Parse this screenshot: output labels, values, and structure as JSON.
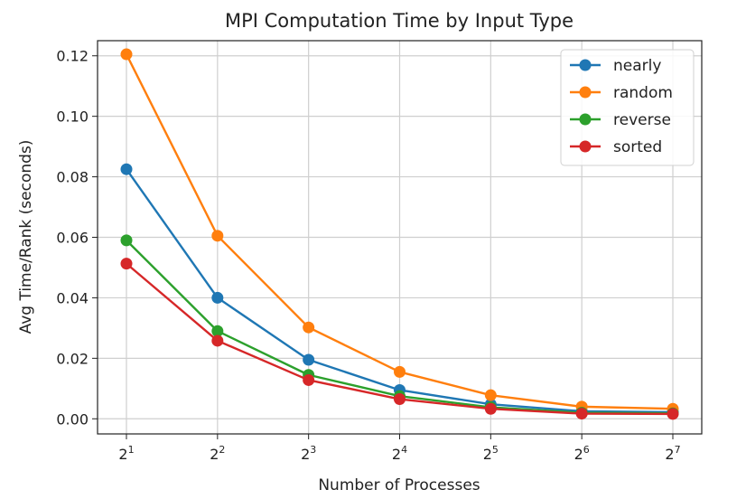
{
  "chart_data": {
    "type": "line",
    "title": "MPI Computation Time by Input Type",
    "xlabel": "Number of Processes",
    "ylabel": "Avg Time/Rank (seconds)",
    "x": [
      2,
      4,
      8,
      16,
      32,
      64,
      128
    ],
    "x_tick_labels": [
      {
        "base": "2",
        "exp": "1"
      },
      {
        "base": "2",
        "exp": "2"
      },
      {
        "base": "2",
        "exp": "3"
      },
      {
        "base": "2",
        "exp": "4"
      },
      {
        "base": "2",
        "exp": "5"
      },
      {
        "base": "2",
        "exp": "6"
      },
      {
        "base": "2",
        "exp": "7"
      }
    ],
    "x_scale": "log2",
    "y_ticks": [
      "0.00",
      "0.02",
      "0.04",
      "0.06",
      "0.08",
      "0.10",
      "0.12"
    ],
    "ylim": [
      -0.005,
      0.125
    ],
    "grid": true,
    "legend_position": "top-right",
    "series": [
      {
        "name": "nearly",
        "color": "#1f77b4",
        "values": [
          0.0825,
          0.04,
          0.0195,
          0.0095,
          0.0048,
          0.0025,
          0.0022
        ]
      },
      {
        "name": "random",
        "color": "#ff7f0e",
        "values": [
          0.1205,
          0.0605,
          0.0302,
          0.0155,
          0.0078,
          0.004,
          0.0033
        ]
      },
      {
        "name": "reverse",
        "color": "#2ca02c",
        "values": [
          0.059,
          0.029,
          0.0145,
          0.0075,
          0.0038,
          0.002,
          0.0018
        ]
      },
      {
        "name": "sorted",
        "color": "#d62728",
        "values": [
          0.0513,
          0.0258,
          0.0128,
          0.0065,
          0.0033,
          0.0017,
          0.0016
        ]
      }
    ]
  }
}
